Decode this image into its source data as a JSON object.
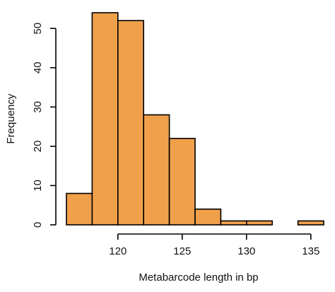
{
  "chart_data": {
    "type": "bar",
    "title": "",
    "xlabel": "Metabarcode length in bp",
    "ylabel": "Frequency",
    "bin_edges": [
      116,
      118,
      120,
      122,
      124,
      126,
      128,
      130,
      132,
      134,
      136
    ],
    "values": [
      8,
      54,
      52,
      28,
      22,
      4,
      1,
      1,
      0,
      1
    ],
    "xlim": [
      116,
      136
    ],
    "ylim": [
      0,
      54
    ],
    "x_ticks": [
      "120",
      "125",
      "130",
      "135"
    ],
    "y_ticks": [
      "0",
      "10",
      "20",
      "30",
      "40",
      "50"
    ],
    "grid": false,
    "bar_color": "#F0A04B"
  }
}
